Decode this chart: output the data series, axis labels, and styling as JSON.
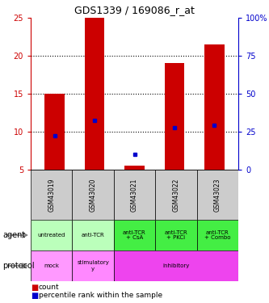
{
  "title": "GDS1339 / 169086_r_at",
  "samples": [
    "GSM43019",
    "GSM43020",
    "GSM43021",
    "GSM43022",
    "GSM43023"
  ],
  "red_bar_bottom": [
    5,
    5,
    5,
    5,
    5
  ],
  "red_bar_top": [
    15,
    25,
    5.5,
    19,
    21.5
  ],
  "blue_dot_y": [
    9.5,
    11.5,
    7.0,
    10.5,
    10.8
  ],
  "ylim": [
    5,
    25
  ],
  "yticks_left": [
    5,
    10,
    15,
    20,
    25
  ],
  "yticks_right": [
    0,
    25,
    50,
    75,
    100
  ],
  "ytick_labels_right": [
    "0",
    "25",
    "50",
    "75",
    "100%"
  ],
  "agent_labels": [
    "untreated",
    "anti-TCR",
    "anti-TCR\n+ CsA",
    "anti-TCR\n+ PKCi",
    "anti-TCR\n+ Combo"
  ],
  "agent_colors": [
    "#bbffbb",
    "#bbffbb",
    "#44ee44",
    "#44ee44",
    "#44ee44"
  ],
  "proto_spans": [
    [
      0,
      1,
      "mock",
      "#ff99ff"
    ],
    [
      1,
      2,
      "stimulatory\ny",
      "#ff88ff"
    ],
    [
      2,
      5,
      "inhibitory",
      "#ee44ee"
    ]
  ],
  "sample_bg": "#cccccc",
  "red_color": "#cc0000",
  "blue_color": "#0000cc",
  "left_axis_color": "#cc0000",
  "right_axis_color": "#0000cc",
  "gridlines_at": [
    10,
    15,
    20
  ],
  "bar_width": 0.5,
  "n": 5
}
